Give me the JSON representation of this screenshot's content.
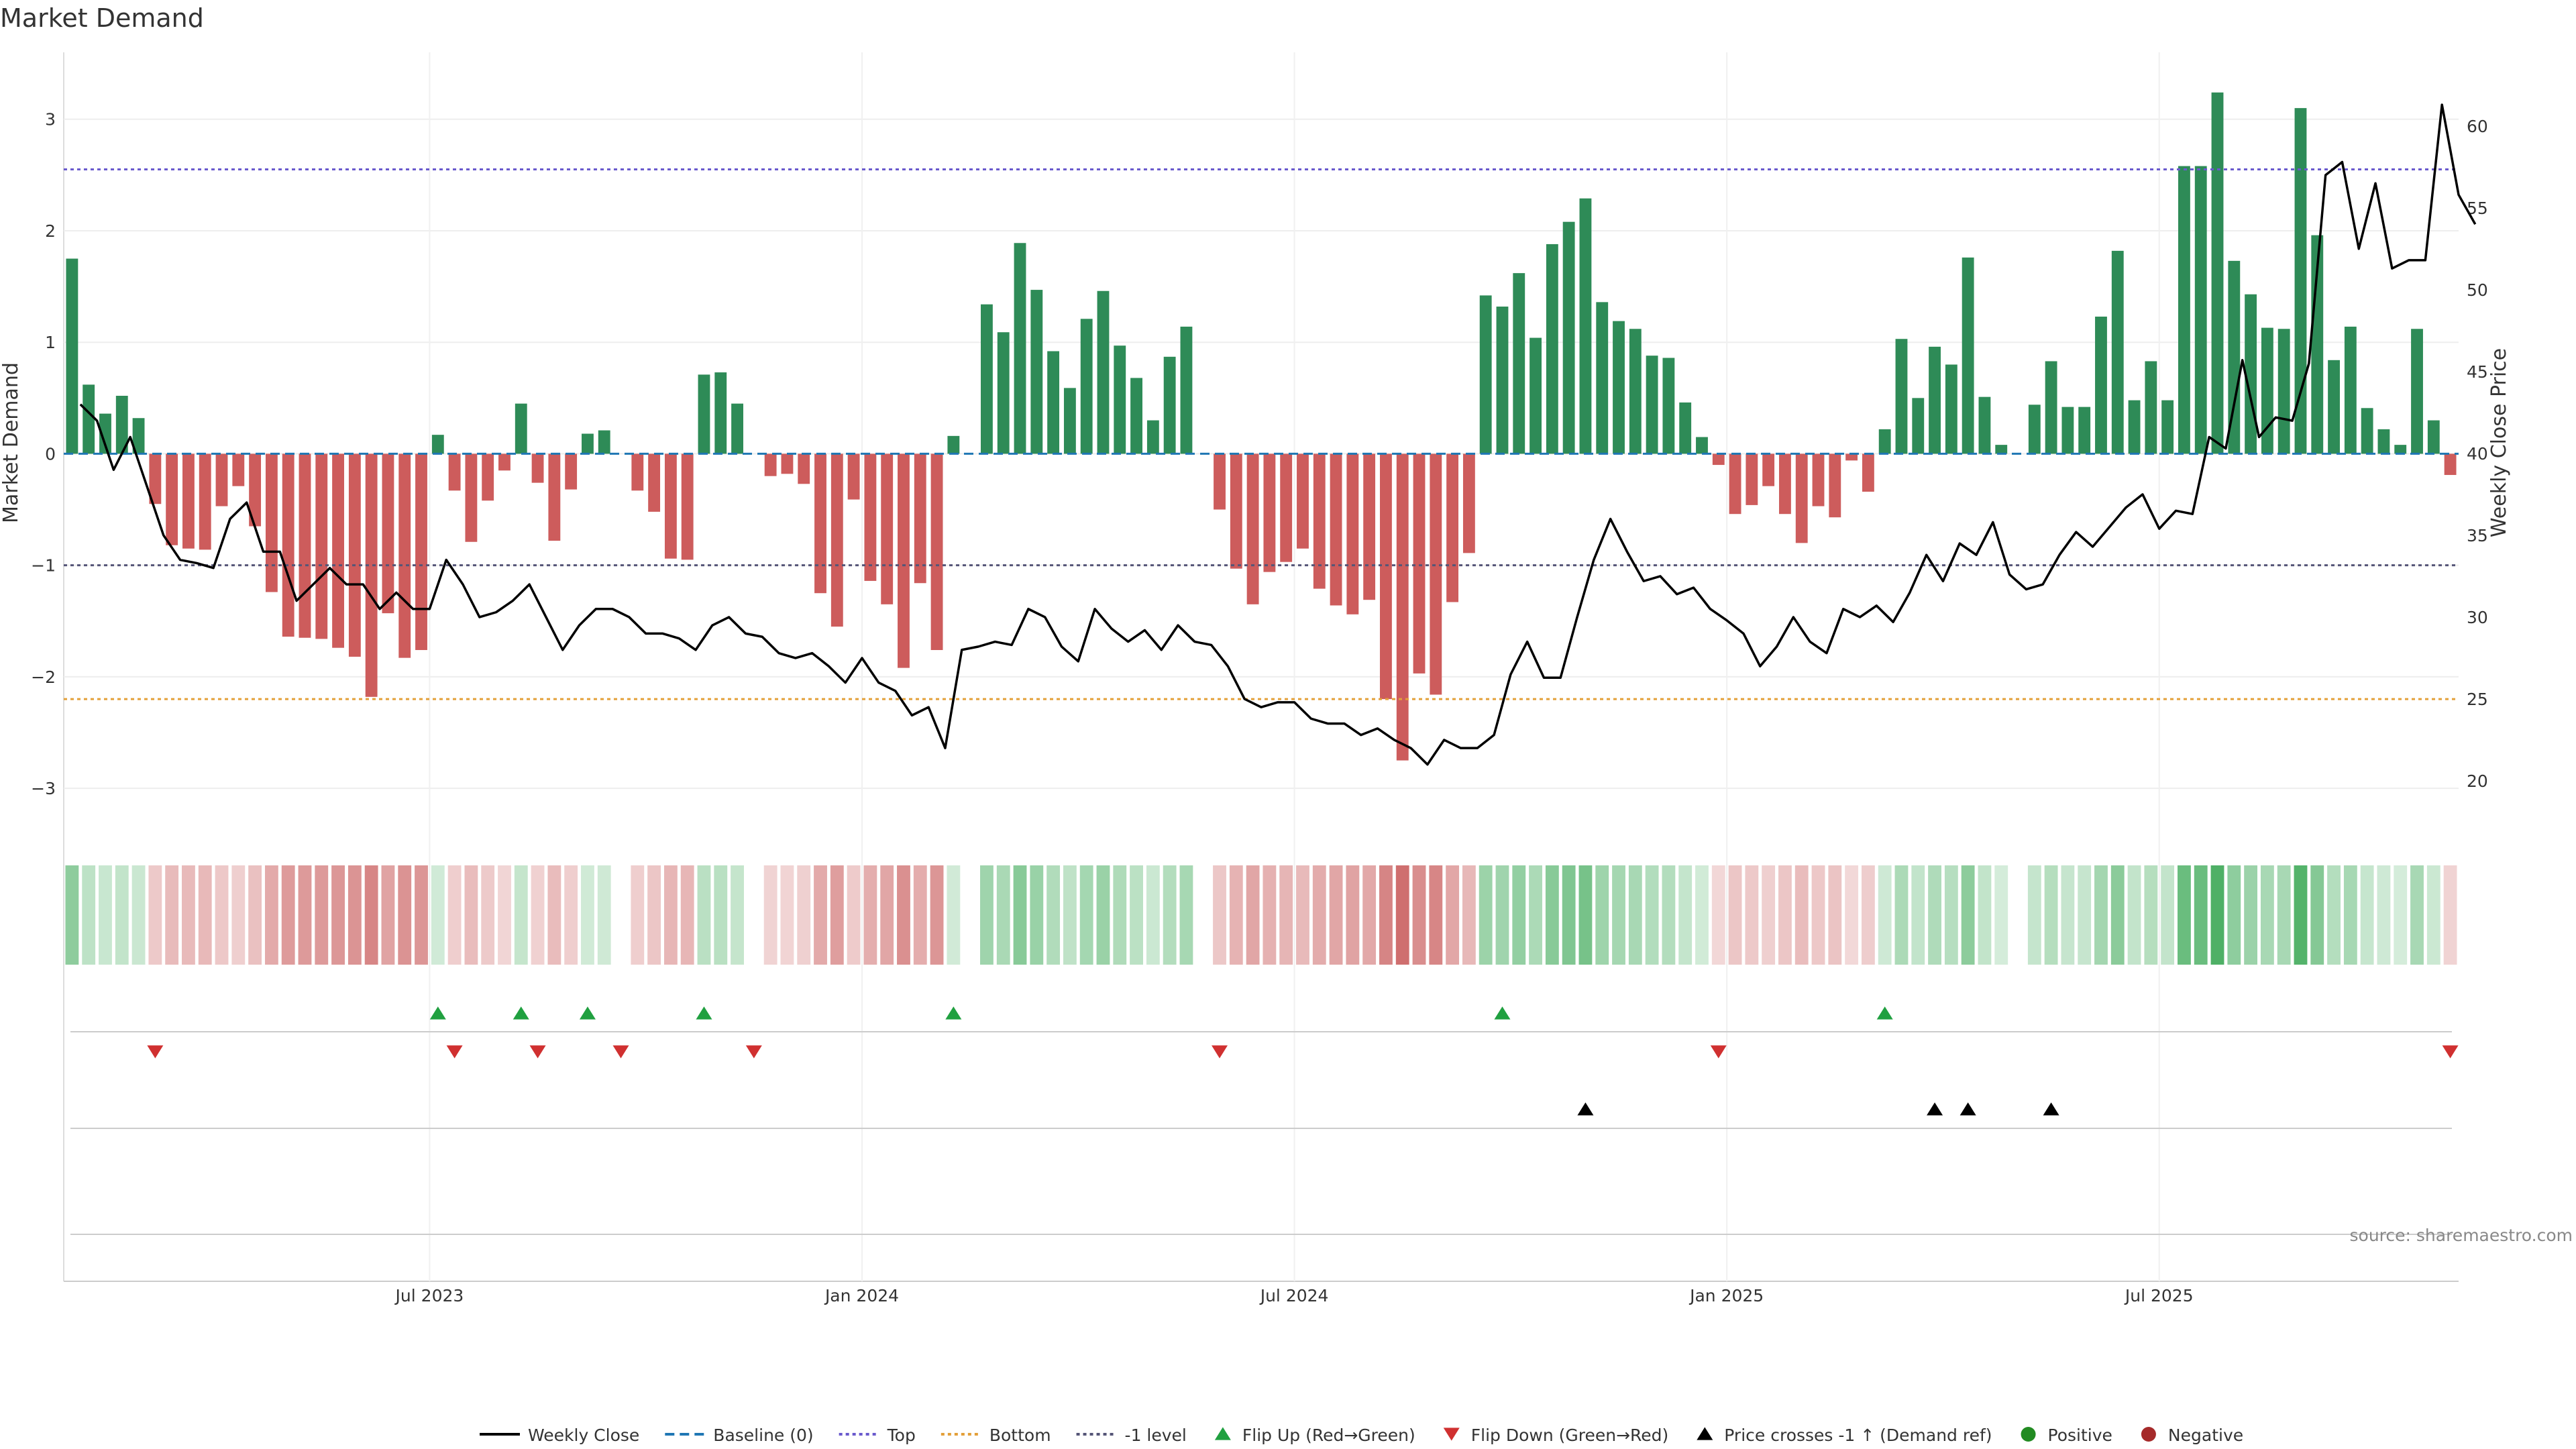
{
  "chart_data": {
    "type": "bar",
    "title": "Market Demand",
    "ylabel": "Market Demand",
    "y2label": "Weekly Close Price",
    "ylim": [
      -3.3,
      3.6
    ],
    "y_ticks": [
      -3,
      -2,
      -1,
      0,
      1,
      2,
      3
    ],
    "y_tick_labels": [
      "−3",
      "−2",
      "−1",
      "0",
      "1",
      "2",
      "3"
    ],
    "y2lim": [
      17.5,
      64.5
    ],
    "y2_ticks": [
      20,
      25,
      30,
      35,
      40,
      45,
      50,
      55,
      60
    ],
    "y2_tick_labels": [
      "20",
      "25",
      "30",
      "35",
      "40",
      "45",
      "50",
      "55",
      "60"
    ],
    "x_ticks": [
      22,
      48,
      74,
      100,
      126
    ],
    "x_tick_labels": [
      "Jul 2023",
      "Jan 2024",
      "Jul 2024",
      "Jan 2025",
      "Jul 2025"
    ],
    "n_weeks": 144,
    "reference_lines": {
      "top": 2.55,
      "bottom": -2.2,
      "minus_one": -1,
      "baseline": 0
    },
    "colors": {
      "positive": "#2e8b57",
      "negative": "#cd5c5c",
      "close": "#000000",
      "top": "#6a5acd",
      "bottom": "#e3a03a",
      "minus_one": "#555577",
      "baseline": "#1f77b4",
      "flip_up": "#20a040",
      "flip_down": "#d03030",
      "cross": "#000000",
      "pos_dot": "#228b22",
      "neg_dot": "#a52a2a"
    },
    "series": [
      {
        "name": "Market Demand",
        "values": [
          1.75,
          0.62,
          0.36,
          0.52,
          0.32,
          -0.45,
          -0.82,
          -0.85,
          -0.86,
          -0.47,
          -0.29,
          -0.65,
          -1.24,
          -1.64,
          -1.65,
          -1.66,
          -1.74,
          -1.82,
          -2.18,
          -1.43,
          -1.83,
          -1.76,
          0.17,
          -0.33,
          -0.79,
          -0.42,
          -0.15,
          0.45,
          -0.26,
          -0.78,
          -0.32,
          0.18,
          0.21,
          0.0,
          -0.33,
          -0.52,
          -0.94,
          -0.95,
          0.71,
          0.73,
          0.45,
          0.0,
          -0.2,
          -0.18,
          -0.27,
          -1.25,
          -1.55,
          -0.41,
          -1.14,
          -1.35,
          -1.92,
          -1.16,
          -1.76,
          0.16,
          0.0,
          1.34,
          1.09,
          1.89,
          1.47,
          0.92,
          0.59,
          1.21,
          1.46,
          0.97,
          0.68,
          0.3,
          0.87,
          1.14,
          0.0,
          -0.5,
          -1.03,
          -1.35,
          -1.06,
          -0.97,
          -0.85,
          -1.21,
          -1.36,
          -1.44,
          -1.31,
          -2.2,
          -2.75,
          -1.97,
          -2.16,
          -1.33,
          -0.89,
          1.42,
          1.32,
          1.62,
          1.04,
          1.88,
          2.08,
          2.29,
          1.36,
          1.19,
          1.12,
          0.88,
          0.86,
          0.46,
          0.15,
          -0.1,
          -0.54,
          -0.46,
          -0.29,
          -0.54,
          -0.8,
          -0.47,
          -0.57,
          -0.06,
          -0.34,
          0.22,
          1.03,
          0.5,
          0.96,
          0.8,
          1.76,
          0.51,
          0.08,
          0.0,
          0.44,
          0.83,
          0.42,
          0.42,
          1.23,
          1.82,
          0.48,
          0.83,
          0.48,
          2.58,
          2.58,
          3.24,
          1.73,
          1.43,
          1.13,
          1.12,
          3.1,
          1.96,
          0.84,
          1.14,
          0.41,
          0.22,
          0.08,
          1.12,
          0.3,
          -0.19
        ]
      },
      {
        "name": "Weekly Close",
        "values": [
          43,
          42,
          39,
          41,
          38,
          35,
          33.5,
          33.3,
          33,
          36,
          37,
          34,
          34,
          31,
          32,
          33,
          32,
          32,
          30.5,
          31.5,
          30.5,
          30.5,
          33.5,
          32,
          30,
          30.3,
          31,
          32,
          30,
          28,
          29.5,
          30.5,
          30.5,
          30,
          29,
          29,
          28.7,
          28,
          29.5,
          30,
          29,
          28.8,
          27.8,
          27.5,
          27.8,
          27,
          26,
          27.5,
          26,
          25.5,
          24,
          24.5,
          22,
          28,
          28.2,
          28.5,
          28.3,
          30.5,
          30,
          28.2,
          27.3,
          30.5,
          29.3,
          28.5,
          29.2,
          28,
          29.5,
          28.5,
          28.3,
          27,
          25,
          24.5,
          24.8,
          24.8,
          23.8,
          23.5,
          23.5,
          22.8,
          23.2,
          22.5,
          22,
          21,
          22.5,
          22,
          22,
          22.8,
          26.5,
          28.5,
          26.3,
          26.3,
          30,
          33.5,
          36,
          34,
          32.2,
          32.5,
          31.4,
          31.8,
          30.5,
          29.8,
          29,
          27,
          28.2,
          30,
          28.5,
          27.8,
          30.5,
          30,
          30.7,
          29.7,
          31.5,
          33.8,
          32.2,
          34.5,
          33.8,
          35.8,
          32.6,
          31.7,
          32,
          33.8,
          35.2,
          34.3,
          35.5,
          36.7,
          37.5,
          35.4,
          36.5,
          36.3,
          41,
          40.3,
          45.7,
          41,
          42.2,
          42,
          45.5,
          57,
          57.8,
          52.5,
          56.5,
          51.3,
          51.8,
          51.8,
          61.3,
          55.8,
          54
        ]
      },
      {
        "name": "Flip Up (Red→Green)",
        "weeks": [
          22,
          27,
          31,
          38,
          53,
          86,
          109
        ]
      },
      {
        "name": "Flip Down (Green→Red)",
        "weeks": [
          5,
          23,
          28,
          33,
          41,
          69,
          99,
          143
        ]
      },
      {
        "name": "Price crosses -1 ↑ (Demand ref)",
        "weeks": [
          91,
          112,
          114,
          119
        ]
      }
    ],
    "legend": {
      "placement": "bottom-center",
      "entries": [
        {
          "key": "close",
          "label": "Weekly Close"
        },
        {
          "key": "baseline",
          "label": "Baseline (0)"
        },
        {
          "key": "top",
          "label": "Top"
        },
        {
          "key": "bottom",
          "label": "Bottom"
        },
        {
          "key": "minus_one",
          "label": "-1 level"
        },
        {
          "key": "flip_up",
          "label": "Flip Up (Red→Green)"
        },
        {
          "key": "flip_down",
          "label": "Flip Down (Green→Red)"
        },
        {
          "key": "cross",
          "label": "Price crosses -1 ↑ (Demand ref)"
        },
        {
          "key": "pos_dot",
          "label": "Positive"
        },
        {
          "key": "neg_dot",
          "label": "Negative"
        }
      ]
    },
    "source_note": "source: sharemaestro.com"
  }
}
